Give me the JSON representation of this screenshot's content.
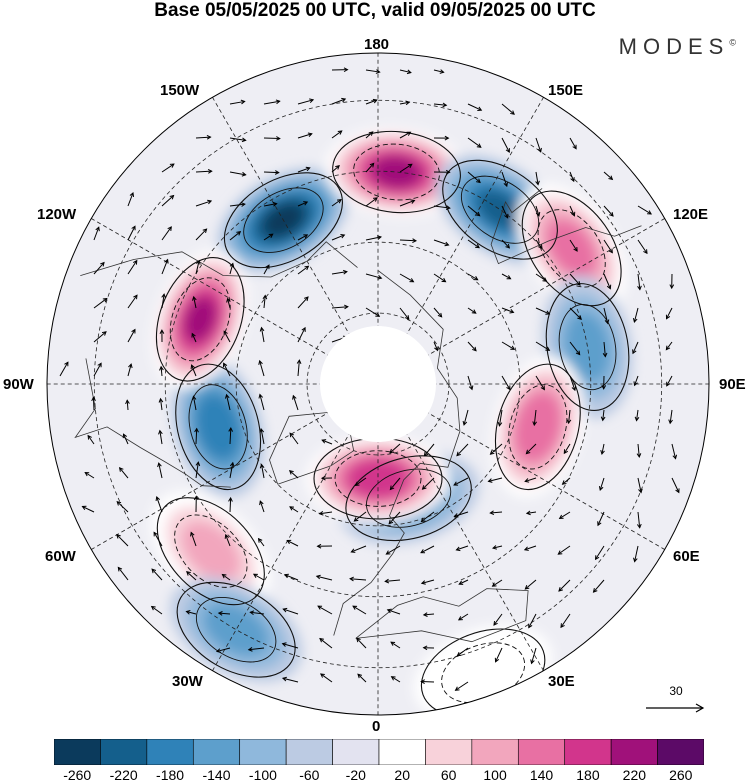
{
  "title": "Base 05/05/2025 00 UTC, valid 09/05/2025 00 UTC",
  "brand": "MODES",
  "brand_mark": "©",
  "longitude_labels": {
    "top": "180",
    "top_left": "150W",
    "top_right": "150E",
    "upper_left": "120W",
    "upper_right": "120E",
    "left": "90W",
    "right": "90E",
    "lower_left": "60W",
    "lower_right": "60E",
    "bottom_left": "30W",
    "bottom_right": "30E",
    "bottom": "0"
  },
  "reference_vector": "30",
  "colorbar": {
    "labels": [
      "-260",
      "-220",
      "-180",
      "-140",
      "-100",
      "-60",
      "-20",
      "20",
      "60",
      "100",
      "140",
      "180",
      "220",
      "260"
    ],
    "colors": [
      "#0b3a5c",
      "#145f8c",
      "#2f82b8",
      "#5d9fcc",
      "#8fb8dc",
      "#bccbe3",
      "#e3e3f0",
      "#ffffff",
      "#f8d2da",
      "#f2a6bd",
      "#e870a3",
      "#d2358c",
      "#a0117a",
      "#5c0a67"
    ]
  },
  "anomaly_features": [
    {
      "lon": -150,
      "lat": 50,
      "value": -240
    },
    {
      "lon": 175,
      "lat": 45,
      "value": 250
    },
    {
      "lon": 145,
      "lat": 45,
      "value": -200
    },
    {
      "lon": 125,
      "lat": 40,
      "value": 170
    },
    {
      "lon": 100,
      "lat": 45,
      "value": -120
    },
    {
      "lon": 75,
      "lat": 55,
      "value": 190
    },
    {
      "lon": 15,
      "lat": 65,
      "value": -140
    },
    {
      "lon": 0,
      "lat": 70,
      "value": 230
    },
    {
      "lon": -75,
      "lat": 55,
      "value": -180
    },
    {
      "lon": -110,
      "lat": 50,
      "value": 240
    },
    {
      "lon": -45,
      "lat": 40,
      "value": 120
    },
    {
      "lon": -30,
      "lat": 30,
      "value": -120
    },
    {
      "lon": 20,
      "lat": 25,
      "value": 60
    }
  ]
}
